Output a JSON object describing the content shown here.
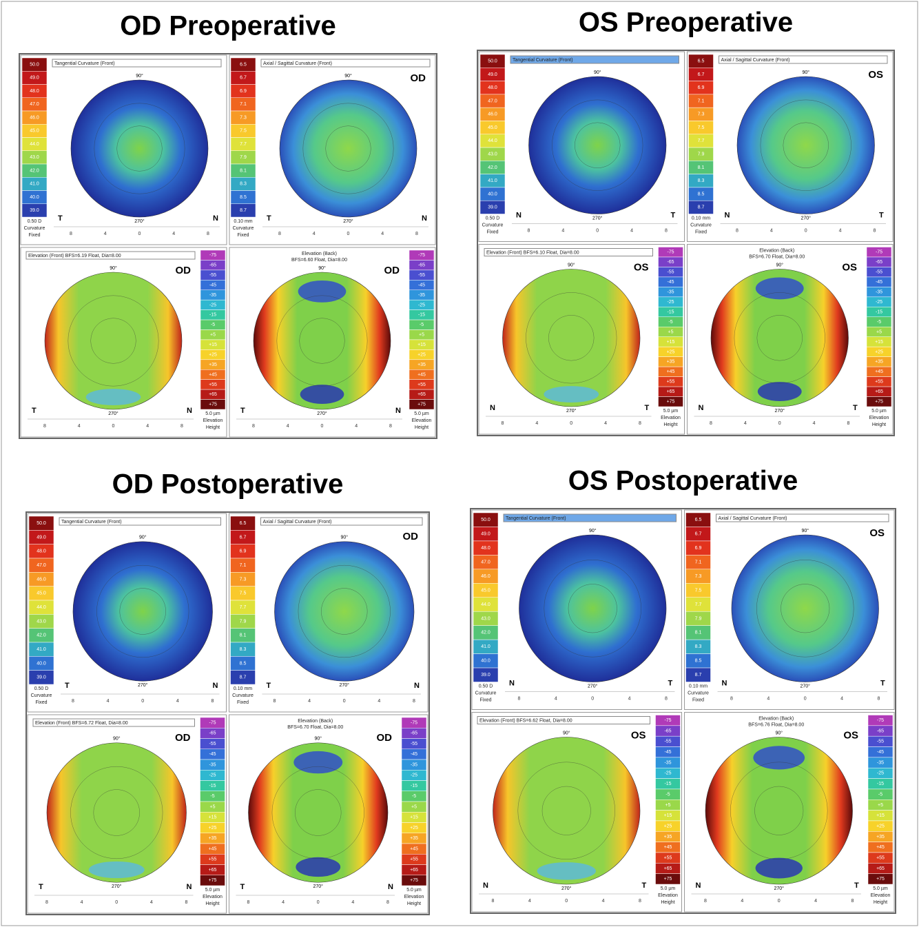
{
  "panels": [
    {
      "title": "OD  Preoperative",
      "eye": "OD",
      "left": "T",
      "right": "N",
      "maps": [
        {
          "header": "Tangential Curvature (Front)"
        },
        {
          "header": "Axial / Sagittal Curvature (Front)"
        },
        {
          "header": "Elevation (Front)  BFS=6.19 Float, Dia=8.00"
        },
        {
          "header": "Elevation (Back)",
          "subheader": "BFS=6.60 Float, Dia=8.00"
        }
      ]
    },
    {
      "title": "OS Preoperative",
      "eye": "OS",
      "left": "N",
      "right": "T",
      "maps": [
        {
          "header": "Tangential Curvature (Front)"
        },
        {
          "header": "Axial / Sagittal Curvature (Front)"
        },
        {
          "header": "Elevation (Front)  BFS=6.10 Float, Dia=8.00"
        },
        {
          "header": "Elevation (Back)",
          "subheader": "BFS=6.70 Float, Dia=8.00"
        }
      ]
    },
    {
      "title": "OD Postoperative",
      "eye": "OD",
      "left": "T",
      "right": "N",
      "maps": [
        {
          "header": "Tangential Curvature (Front)"
        },
        {
          "header": "Axial / Sagittal Curvature (Front)"
        },
        {
          "header": "Elevation (Front)  BFS=6.72 Float, Dia=8.00"
        },
        {
          "header": "Elevation (Back)",
          "subheader": "BFS=6.70 Float, Dia=8.00"
        }
      ]
    },
    {
      "title": "OS Postoperative",
      "eye": "OS",
      "left": "N",
      "right": "T",
      "maps": [
        {
          "header": "Tangential Curvature (Front)"
        },
        {
          "header": "Axial / Sagittal Curvature (Front)"
        },
        {
          "header": "Elevation (Front)  BFS=6.62 Float, Dia=8.00"
        },
        {
          "header": "Elevation (Back)",
          "subheader": "BFS=6.76 Float, Dia=8.00"
        }
      ]
    }
  ],
  "angles": {
    "top": "90°",
    "bottom": "270°"
  },
  "ruler": [
    "8",
    "4",
    "0",
    "4",
    "8"
  ],
  "scales": {
    "curvature": {
      "labels": [
        "50.0",
        "49.0",
        "48.0",
        "47.0",
        "46.0",
        "45.0",
        "44.0",
        "43.0",
        "42.0",
        "41.0",
        "40.0",
        "39.0"
      ],
      "footer": [
        "0.50 D",
        "Curvature",
        "Fixed"
      ]
    },
    "radius": {
      "labels": [
        "6.5",
        "6.7",
        "6.9",
        "7.1",
        "7.3",
        "7.5",
        "7.7",
        "7.9",
        "8.1",
        "8.3",
        "8.5",
        "8.7"
      ],
      "footer": [
        "0.10 mm",
        "Curvature",
        "Fixed"
      ]
    },
    "elevation": {
      "labels": [
        "-75",
        "-65",
        "-55",
        "-45",
        "-35",
        "-25",
        "-15",
        "-5",
        "+5",
        "+15",
        "+25",
        "+35",
        "+45",
        "+55",
        "+65",
        "+75"
      ],
      "footer": [
        "5.0 µm",
        "Elevation",
        "Height"
      ]
    }
  }
}
